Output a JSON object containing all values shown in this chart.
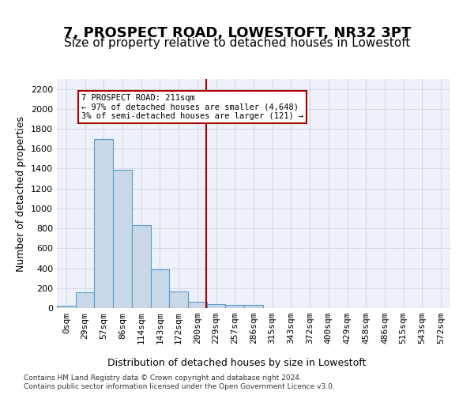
{
  "title": "7, PROSPECT ROAD, LOWESTOFT, NR32 3PT",
  "subtitle": "Size of property relative to detached houses in Lowestoft",
  "xlabel": "Distribution of detached houses by size in Lowestoft",
  "ylabel": "Number of detached properties",
  "footnote1": "Contains HM Land Registry data © Crown copyright and database right 2024.",
  "footnote2": "Contains public sector information licensed under the Open Government Licence v3.0.",
  "bin_labels": [
    "0sqm",
    "29sqm",
    "57sqm",
    "86sqm",
    "114sqm",
    "143sqm",
    "172sqm",
    "200sqm",
    "229sqm",
    "257sqm",
    "286sqm",
    "315sqm",
    "343sqm",
    "372sqm",
    "400sqm",
    "429sqm",
    "458sqm",
    "486sqm",
    "515sqm",
    "543sqm",
    "572sqm"
  ],
  "bar_values": [
    20,
    155,
    1700,
    1390,
    835,
    385,
    165,
    65,
    40,
    30,
    30,
    0,
    0,
    0,
    0,
    0,
    0,
    0,
    0,
    0,
    0
  ],
  "bar_color": "#c8d8e8",
  "bar_edge_color": "#5a9ac8",
  "vline_x": 7.47,
  "vline_color": "#aa0000",
  "annotation_text": "7 PROSPECT ROAD: 211sqm\n← 97% of detached houses are smaller (4,648)\n3% of semi-detached houses are larger (121) →",
  "annotation_box_color": "#aa0000",
  "ylim": [
    0,
    2300
  ],
  "yticks": [
    0,
    200,
    400,
    600,
    800,
    1000,
    1200,
    1400,
    1600,
    1800,
    2000,
    2200
  ],
  "grid_color": "#d0d8e8",
  "bg_color": "#eef2f8",
  "title_fontsize": 13,
  "subtitle_fontsize": 11,
  "axis_label_fontsize": 9,
  "tick_fontsize": 8
}
